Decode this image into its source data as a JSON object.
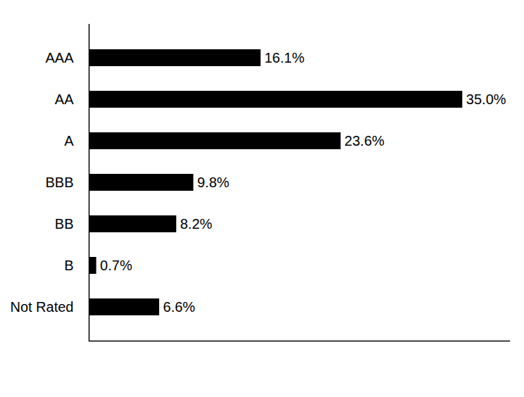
{
  "chart_data": {
    "type": "bar",
    "orientation": "horizontal",
    "categories": [
      "AAA",
      "AA",
      "A",
      "BBB",
      "BB",
      "B",
      "Not Rated"
    ],
    "values": [
      16.1,
      35.0,
      23.6,
      9.8,
      8.2,
      0.7,
      6.6
    ],
    "value_labels": [
      "16.1%",
      "35.0%",
      "23.6%",
      "9.8%",
      "8.2%",
      "0.7%",
      "6.6%"
    ],
    "color": "#000000",
    "xlim": [
      0,
      39.4
    ],
    "grid": false,
    "data_labels": true,
    "tick_labels": "y"
  }
}
